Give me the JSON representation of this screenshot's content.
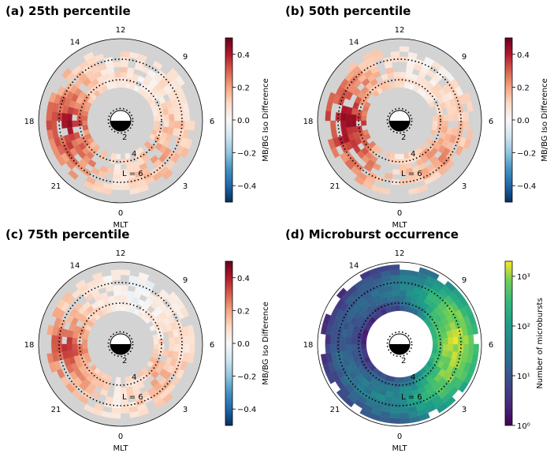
{
  "figure": {
    "panels": [
      {
        "title": "(a) 25th percentile",
        "colorbar_label": "MB/BG Iso Difference",
        "colorbar_ticks": [
          "0.4",
          "0.2",
          "0.0",
          "−0.2",
          "−0.4"
        ]
      },
      {
        "title": "(b) 50th percentile",
        "colorbar_label": "MB/BG Iso Difference",
        "colorbar_ticks": [
          "0.4",
          "0.2",
          "0.0",
          "−0.2",
          "−0.4"
        ]
      },
      {
        "title": "(c) 75th percentile",
        "colorbar_label": "MB/BG Iso Difference",
        "colorbar_ticks": [
          "0.4",
          "0.2",
          "0.0",
          "−0.2",
          "−0.4"
        ]
      },
      {
        "title": "(d) Microburst occurrence",
        "colorbar_label": "Number of microbursts",
        "colorbar_ticks": [
          "10³",
          "10²",
          "10¹",
          "10⁰"
        ]
      }
    ],
    "mlt_labels": [
      "12",
      "9",
      "6",
      "3",
      "0",
      "21",
      "18",
      "14"
    ],
    "radial_labels": [
      "2",
      "4",
      "L = 6"
    ],
    "axis_label": "MLT"
  },
  "chart_data": [
    {
      "type": "heatmap",
      "projection": "polar (MLT dial)",
      "title": "(a) 25th percentile",
      "xlabel": "MLT",
      "mlt_ticks": [
        12,
        9,
        6,
        3,
        0,
        21,
        18,
        14
      ],
      "L_labels": [
        "2",
        "4",
        "L = 6"
      ],
      "L_range": [
        0,
        8
      ],
      "L_bins": [
        3.5,
        4.0,
        4.5,
        5.0,
        5.5,
        6.0,
        6.5,
        7.0
      ],
      "colorbar": {
        "label": "MB/BG Iso Difference",
        "range": [
          -0.5,
          0.5
        ],
        "ticks": [
          -0.4,
          -0.2,
          0.0,
          0.2,
          0.4
        ],
        "colormap": "RdBu_r"
      },
      "values_by_mlt_hour": [
        0.05,
        0.12,
        0.14,
        0.2,
        0.18,
        0.14,
        0.12,
        0.1,
        0.06,
        0.05,
        0.02,
        0.06,
        0.1,
        0.06,
        0.12,
        0.16,
        0.22,
        0.32,
        0.42,
        0.36,
        0.3,
        0.26,
        0.2,
        0.12
      ],
      "background_color": "#d3d3d3"
    },
    {
      "type": "heatmap",
      "projection": "polar (MLT dial)",
      "title": "(b) 50th percentile",
      "xlabel": "MLT",
      "mlt_ticks": [
        12,
        9,
        6,
        3,
        0,
        21,
        18,
        14
      ],
      "L_labels": [
        "2",
        "4",
        "L = 6"
      ],
      "L_range": [
        0,
        8
      ],
      "L_bins": [
        3.5,
        4.0,
        4.5,
        5.0,
        5.5,
        6.0,
        6.5,
        7.0
      ],
      "colorbar": {
        "label": "MB/BG Iso Difference",
        "range": [
          -0.5,
          0.5
        ],
        "ticks": [
          -0.4,
          -0.2,
          0.0,
          0.2,
          0.4
        ],
        "colormap": "RdBu_r"
      },
      "values_by_mlt_hour": [
        0.08,
        0.14,
        0.16,
        0.22,
        0.2,
        0.16,
        0.14,
        0.12,
        0.08,
        0.06,
        0.03,
        0.05,
        0.08,
        0.1,
        0.16,
        0.22,
        0.3,
        0.38,
        0.45,
        0.4,
        0.34,
        0.28,
        0.2,
        0.14
      ],
      "background_color": "#d3d3d3"
    },
    {
      "type": "heatmap",
      "projection": "polar (MLT dial)",
      "title": "(c) 75th percentile",
      "xlabel": "MLT",
      "mlt_ticks": [
        12,
        9,
        6,
        3,
        0,
        21,
        18,
        14
      ],
      "L_labels": [
        "2",
        "4",
        "L = 6"
      ],
      "L_range": [
        0,
        8
      ],
      "L_bins": [
        3.5,
        4.0,
        4.5,
        5.0,
        5.5,
        6.0,
        6.5,
        7.0
      ],
      "colorbar": {
        "label": "MB/BG Iso Difference",
        "range": [
          -0.5,
          0.5
        ],
        "ticks": [
          -0.4,
          -0.2,
          0.0,
          0.2,
          0.4
        ],
        "colormap": "RdBu_r"
      },
      "values_by_mlt_hour": [
        0.04,
        0.1,
        0.12,
        0.18,
        0.16,
        0.12,
        0.1,
        0.08,
        0.06,
        0.04,
        -0.02,
        -0.03,
        0.02,
        0.04,
        0.08,
        0.12,
        0.18,
        0.26,
        0.36,
        0.3,
        0.24,
        0.2,
        0.12,
        0.08
      ],
      "background_color": "#d3d3d3"
    },
    {
      "type": "heatmap",
      "projection": "polar (MLT dial)",
      "title": "(d) Microburst occurrence",
      "xlabel": "MLT",
      "mlt_ticks": [
        12,
        9,
        6,
        3,
        0,
        21,
        18,
        14
      ],
      "L_labels": [
        "2",
        "4",
        "L = 6"
      ],
      "L_range": [
        0,
        8
      ],
      "L_bins": [
        3.5,
        4.0,
        4.5,
        5.0,
        5.5,
        6.0,
        6.5,
        7.0,
        7.5
      ],
      "colorbar": {
        "label": "Number of microbursts",
        "scale": "log",
        "range": [
          1,
          2000
        ],
        "ticks": [
          1,
          10,
          100,
          1000
        ],
        "colormap": "viridis"
      },
      "peak_counts_by_mlt_hour": [
        60,
        120,
        250,
        500,
        900,
        1200,
        1400,
        1200,
        900,
        400,
        150,
        80,
        40,
        25,
        20,
        15,
        12,
        12,
        15,
        18,
        22,
        30,
        40,
        50
      ],
      "background_color": "#ffffff"
    }
  ]
}
